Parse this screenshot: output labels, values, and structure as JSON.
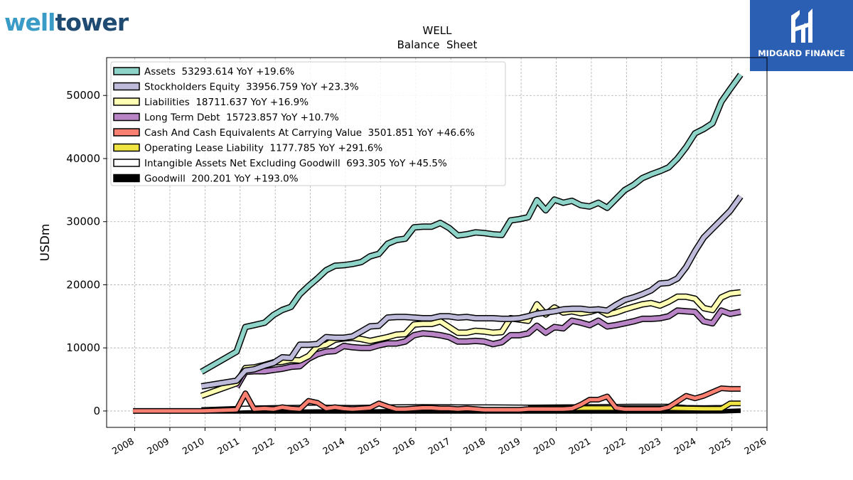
{
  "brand_left": {
    "part1": "well",
    "part2": "tower"
  },
  "brand_right": {
    "name": "MIDGARD FINANCE"
  },
  "chart_data": {
    "type": "line",
    "title": "WELL",
    "subtitle": "Balance  Sheet",
    "ylabel": "USDm",
    "xlim": [
      2007.2,
      2026.0
    ],
    "ylim": [
      -2600,
      56000
    ],
    "yticks": [
      0,
      10000,
      20000,
      30000,
      40000,
      50000
    ],
    "xticks": [
      2008,
      2009,
      2010,
      2011,
      2012,
      2013,
      2014,
      2015,
      2016,
      2017,
      2018,
      2019,
      2020,
      2021,
      2022,
      2023,
      2024,
      2025,
      2026
    ],
    "grid": true,
    "legend_position": "top-left",
    "series": [
      {
        "name": "Assets",
        "legend": "Assets  53293.614 YoY +19.6%",
        "color": "#8dd3c7",
        "x": [
          2009.9,
          2010.9,
          2011.15,
          2011.4,
          2011.7,
          2011.95,
          2012.2,
          2012.45,
          2012.7,
          2012.95,
          2013.2,
          2013.45,
          2013.7,
          2013.95,
          2014.2,
          2014.45,
          2014.7,
          2014.95,
          2015.2,
          2015.45,
          2015.7,
          2015.95,
          2016.2,
          2016.45,
          2016.7,
          2016.95,
          2017.2,
          2017.45,
          2017.7,
          2017.95,
          2018.2,
          2018.45,
          2018.7,
          2018.95,
          2019.2,
          2019.45,
          2019.7,
          2019.95,
          2020.2,
          2020.45,
          2020.7,
          2020.95,
          2021.2,
          2021.45,
          2021.7,
          2021.95,
          2022.2,
          2022.45,
          2022.7,
          2022.95,
          2023.2,
          2023.45,
          2023.7,
          2023.95,
          2024.2,
          2024.45,
          2024.7,
          2024.95,
          2025.25
        ],
        "y": [
          6200,
          9400,
          13300,
          13600,
          14000,
          15200,
          16000,
          16500,
          18500,
          19800,
          21000,
          22300,
          23000,
          23100,
          23300,
          23600,
          24500,
          24900,
          26500,
          27100,
          27300,
          29100,
          29200,
          29200,
          29800,
          29000,
          27800,
          28000,
          28300,
          28200,
          28000,
          27900,
          30200,
          30400,
          30700,
          33400,
          31800,
          33500,
          33000,
          33300,
          32600,
          32400,
          33000,
          32200,
          33600,
          35000,
          35800,
          36900,
          37500,
          38000,
          38600,
          40000,
          41800,
          44000,
          44700,
          45600,
          49000,
          51000,
          53300
        ]
      },
      {
        "name": "Stockholders Equity",
        "legend": "Stockholders Equity  33956.759 YoY +23.3%",
        "color": "#bebada",
        "x": [
          2009.9,
          2010.9,
          2011.15,
          2011.4,
          2011.7,
          2011.95,
          2012.2,
          2012.45,
          2012.7,
          2012.95,
          2013.2,
          2013.45,
          2013.7,
          2013.95,
          2014.2,
          2014.45,
          2014.7,
          2014.95,
          2015.2,
          2015.45,
          2015.7,
          2015.95,
          2016.2,
          2016.45,
          2016.7,
          2016.95,
          2017.2,
          2017.45,
          2017.7,
          2017.95,
          2018.2,
          2018.45,
          2018.7,
          2018.95,
          2019.2,
          2019.45,
          2019.7,
          2019.95,
          2020.2,
          2020.45,
          2020.7,
          2020.95,
          2021.2,
          2021.45,
          2021.7,
          2021.95,
          2022.2,
          2022.45,
          2022.7,
          2022.95,
          2023.2,
          2023.45,
          2023.7,
          2023.95,
          2024.2,
          2024.45,
          2024.7,
          2024.95,
          2025.25
        ],
        "y": [
          3900,
          4800,
          6400,
          6600,
          7200,
          7600,
          8500,
          8400,
          10500,
          10500,
          10600,
          11700,
          11600,
          11600,
          11800,
          12600,
          13400,
          13500,
          14800,
          14900,
          14900,
          14800,
          14700,
          14700,
          15000,
          15000,
          14800,
          14900,
          14700,
          14700,
          14700,
          14600,
          14600,
          14700,
          15000,
          15400,
          15600,
          15800,
          16100,
          16200,
          16200,
          16000,
          16100,
          15900,
          16800,
          17600,
          18000,
          18500,
          19100,
          20200,
          20300,
          21000,
          22800,
          25300,
          27500,
          28900,
          30300,
          31700,
          34000
        ]
      },
      {
        "name": "Liabilities",
        "legend": "Liabilities  18711.637 YoY +16.9%",
        "color": "#ffffb3",
        "x": [
          2009.9,
          2010.9,
          2011.15,
          2011.4,
          2011.7,
          2011.95,
          2012.2,
          2012.45,
          2012.7,
          2012.95,
          2013.2,
          2013.45,
          2013.7,
          2013.95,
          2014.2,
          2014.45,
          2014.7,
          2014.95,
          2015.2,
          2015.45,
          2015.7,
          2015.95,
          2016.2,
          2016.45,
          2016.7,
          2016.95,
          2017.2,
          2017.45,
          2017.7,
          2017.95,
          2018.2,
          2018.45,
          2018.7,
          2018.95,
          2019.2,
          2019.45,
          2019.7,
          2019.95,
          2020.2,
          2020.45,
          2020.7,
          2020.95,
          2021.2,
          2021.45,
          2021.7,
          2021.95,
          2022.2,
          2022.45,
          2022.7,
          2022.95,
          2023.2,
          2023.45,
          2023.7,
          2023.95,
          2024.2,
          2024.45,
          2024.7,
          2024.95,
          2025.25
        ],
        "y": [
          2400,
          4400,
          6800,
          6900,
          7300,
          7700,
          7800,
          8100,
          8000,
          8700,
          10200,
          10500,
          11300,
          11500,
          11600,
          11400,
          11100,
          11400,
          11700,
          12100,
          12200,
          13700,
          13800,
          13800,
          14200,
          13300,
          12400,
          12400,
          12700,
          12600,
          12400,
          12500,
          14700,
          14500,
          14300,
          16900,
          15300,
          16400,
          15600,
          15800,
          15500,
          15700,
          16100,
          15300,
          15600,
          16100,
          16500,
          16900,
          17100,
          16700,
          17300,
          18100,
          18100,
          17800,
          16300,
          16000,
          18000,
          18600,
          18800
        ]
      },
      {
        "name": "Long Term Debt",
        "legend": "Long Term Debt  15723.857 YoY +10.7%",
        "color": "#b884c5",
        "x": [
          2010.9,
          2011.15,
          2011.4,
          2011.7,
          2011.95,
          2012.2,
          2012.45,
          2012.7,
          2012.95,
          2013.2,
          2013.45,
          2013.7,
          2013.95,
          2014.2,
          2014.45,
          2014.7,
          2014.95,
          2015.2,
          2015.45,
          2015.7,
          2015.95,
          2016.2,
          2016.45,
          2016.7,
          2016.95,
          2017.2,
          2017.45,
          2017.7,
          2017.95,
          2018.2,
          2018.45,
          2018.7,
          2018.95,
          2019.2,
          2019.45,
          2019.7,
          2019.95,
          2020.2,
          2020.45,
          2020.7,
          2020.95,
          2021.2,
          2021.45,
          2021.7,
          2021.95,
          2022.2,
          2022.45,
          2022.7,
          2022.95,
          2023.2,
          2023.45,
          2023.7,
          2023.95,
          2024.2,
          2024.45,
          2024.7,
          2024.95,
          2025.25
        ],
        "y": [
          3800,
          6200,
          6300,
          6300,
          6500,
          6700,
          7000,
          7100,
          8300,
          9000,
          9400,
          9500,
          10300,
          10100,
          10000,
          10000,
          10400,
          10700,
          10700,
          11000,
          12000,
          12300,
          12200,
          12000,
          11700,
          11000,
          11000,
          11100,
          11000,
          10600,
          10900,
          12000,
          12000,
          12300,
          13500,
          12400,
          13300,
          13100,
          14300,
          14000,
          13600,
          14300,
          13400,
          13600,
          13900,
          14200,
          14600,
          14600,
          14700,
          15000,
          15900,
          15800,
          15700,
          14200,
          13900,
          15900,
          15400,
          15700
        ]
      },
      {
        "name": "Cash And Cash Equivalents At Carrying Value",
        "legend": "Cash And Cash Equivalents At Carrying Value  3501.851 YoY +46.6%",
        "color": "#fb8072",
        "x": [
          2007.95,
          2009.9,
          2010.9,
          2011.15,
          2011.4,
          2011.7,
          2011.95,
          2012.2,
          2012.45,
          2012.7,
          2012.95,
          2013.2,
          2013.45,
          2013.7,
          2013.95,
          2014.2,
          2014.45,
          2014.7,
          2014.95,
          2015.2,
          2015.45,
          2015.7,
          2015.95,
          2016.2,
          2016.45,
          2016.7,
          2016.95,
          2017.2,
          2017.45,
          2017.7,
          2017.95,
          2018.2,
          2018.45,
          2018.7,
          2018.95,
          2019.2,
          2019.45,
          2019.7,
          2019.95,
          2020.2,
          2020.45,
          2020.7,
          2020.95,
          2021.2,
          2021.45,
          2021.7,
          2021.95,
          2022.2,
          2022.45,
          2022.7,
          2022.95,
          2023.2,
          2023.45,
          2023.7,
          2023.95,
          2024.2,
          2024.45,
          2024.7,
          2024.95,
          2025.25
        ],
        "y": [
          0,
          0,
          200,
          2800,
          300,
          400,
          300,
          600,
          400,
          300,
          1600,
          1300,
          400,
          600,
          400,
          300,
          400,
          500,
          1200,
          700,
          300,
          300,
          400,
          500,
          500,
          400,
          400,
          300,
          400,
          300,
          200,
          200,
          200,
          200,
          200,
          300,
          300,
          300,
          300,
          300,
          400,
          1000,
          1800,
          1800,
          2300,
          500,
          300,
          300,
          300,
          300,
          300,
          600,
          1500,
          2400,
          2000,
          2400,
          3000,
          3600,
          3500,
          3500
        ]
      },
      {
        "name": "Operating Lease Liability",
        "legend": "Operating Lease Liability  1177.785 YoY +291.6%",
        "color": "#f0e442",
        "x": [
          2019.2,
          2019.7,
          2020.2,
          2020.7,
          2021.2,
          2021.7,
          2022.2,
          2022.7,
          2023.2,
          2023.7,
          2024.2,
          2024.7,
          2024.95,
          2025.25
        ],
        "y": [
          450,
          450,
          450,
          450,
          450,
          450,
          450,
          450,
          450,
          400,
          350,
          350,
          1200,
          1200
        ]
      },
      {
        "name": "Intangible Assets Net Excluding Goodwill",
        "legend": "Intangible Assets Net Excluding Goodwill  693.305 YoY +45.5%",
        "color": "#ffffff",
        "x": [
          2009.9,
          2011.2,
          2012.2,
          2013.2,
          2014.2,
          2015.2,
          2016.2,
          2017.2,
          2018.2,
          2019.2,
          2020.2,
          2021.2,
          2022.2,
          2023.2,
          2023.7,
          2024.2,
          2024.7,
          2024.95,
          2025.25
        ],
        "y": [
          150,
          400,
          500,
          550,
          500,
          600,
          650,
          600,
          600,
          550,
          600,
          650,
          700,
          700,
          500,
          450,
          500,
          650,
          700
        ]
      },
      {
        "name": "Goodwill",
        "legend": "Goodwill  200.201 YoY +193.0%",
        "color": "#000000",
        "x": [
          2009.9,
          2012.2,
          2015.2,
          2018.2,
          2021.2,
          2023.2,
          2024.7,
          2025.25
        ],
        "y": [
          70,
          70,
          70,
          70,
          70,
          70,
          90,
          200
        ]
      }
    ]
  }
}
